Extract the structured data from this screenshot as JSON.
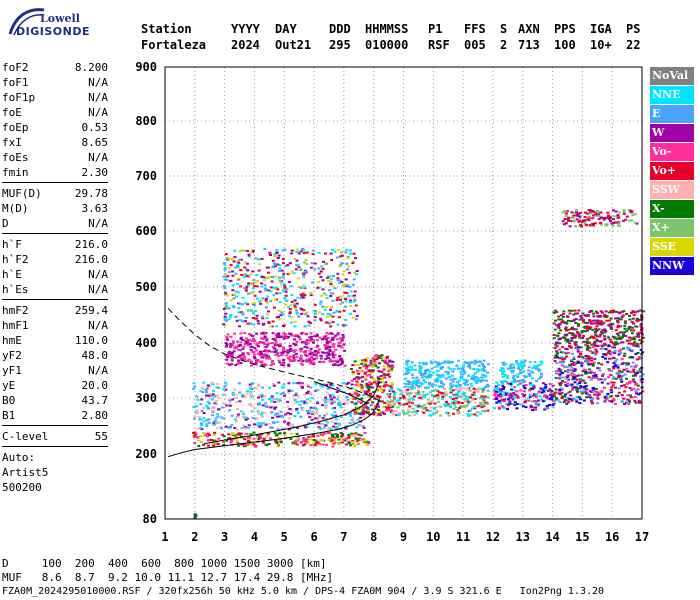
{
  "logo": {
    "line1": "Lowell",
    "line2": "DIGISONDE"
  },
  "header": {
    "labels": [
      "Station",
      "YYYY",
      "DAY",
      "DDD",
      "HHMMSS",
      "P1",
      "FFS",
      "S",
      "AXN",
      "PPS",
      "IGA",
      "PS"
    ],
    "values": [
      "Fortaleza",
      "2024",
      "Out21",
      "295",
      "010000",
      "RSF",
      "005",
      "2",
      "713",
      "100",
      "10+",
      "22"
    ]
  },
  "params": {
    "group1": [
      {
        "label": "foF2",
        "value": "8.200"
      },
      {
        "label": "foF1",
        "value": "N/A"
      },
      {
        "label": "foF1p",
        "value": "N/A"
      },
      {
        "label": "foE",
        "value": "N/A"
      },
      {
        "label": "foEp",
        "value": "0.53"
      },
      {
        "label": "fxI",
        "value": "8.65"
      },
      {
        "label": "foEs",
        "value": "N/A"
      },
      {
        "label": "fmin",
        "value": "2.30"
      }
    ],
    "group2": [
      {
        "label": "MUF(D)",
        "value": "29.78"
      },
      {
        "label": "M(D)",
        "value": "3.63"
      },
      {
        "label": "D",
        "value": "N/A"
      }
    ],
    "group3": [
      {
        "label": "h`F",
        "value": "216.0"
      },
      {
        "label": "h`F2",
        "value": "216.0"
      },
      {
        "label": "h`E",
        "value": "N/A"
      },
      {
        "label": "h`Es",
        "value": "N/A"
      }
    ],
    "group4": [
      {
        "label": "hmF2",
        "value": "259.4"
      },
      {
        "label": "hmF1",
        "value": "N/A"
      },
      {
        "label": "hmE",
        "value": "110.0"
      },
      {
        "label": "yF2",
        "value": "48.0"
      },
      {
        "label": "yF1",
        "value": "N/A"
      },
      {
        "label": "yE",
        "value": "20.0"
      },
      {
        "label": "B0",
        "value": "43.7"
      },
      {
        "label": "B1",
        "value": "2.80"
      }
    ],
    "group5": [
      {
        "label": "C-level",
        "value": "55"
      }
    ],
    "auto": [
      "Auto:",
      "Artist5",
      "500200"
    ]
  },
  "legend": [
    {
      "label": "NoVal",
      "color": "#808080"
    },
    {
      "label": "NNE",
      "color": "#00e5ff"
    },
    {
      "label": "E",
      "color": "#4aa3ff"
    },
    {
      "label": "W",
      "color": "#a000a8"
    },
    {
      "label": "Vo-",
      "color": "#ff2e9a"
    },
    {
      "label": "Vo+",
      "color": "#e8002a"
    },
    {
      "label": "SSW",
      "color": "#ffb0b0"
    },
    {
      "label": "X-",
      "color": "#007a00"
    },
    {
      "label": "X+",
      "color": "#7cc46a"
    },
    {
      "label": "SSE",
      "color": "#d8d800"
    },
    {
      "label": "NNW",
      "color": "#1a00d8"
    }
  ],
  "dmuf": {
    "d_line": "D     100  200  400  600  800 1000 1500 3000 [km]",
    "muf_line": "MUF   8.6  8.7  9.2 10.0 11.1 12.7 17.4 29.8 [MHz]"
  },
  "footer": "FZA0M_2024295010000.RSF / 320fx256h 50 kHz 5.0 km / DPS-4 FZA0M 904 / 3.9 S 321.6 E   Ion2Png 1.3.20",
  "chart_data": {
    "type": "scatter",
    "title": "",
    "xlabel": "",
    "ylabel": "",
    "xlim": [
      1,
      17
    ],
    "ylim": [
      80,
      900
    ],
    "x_ticks": [
      1,
      2,
      3,
      4,
      5,
      6,
      7,
      8,
      9,
      10,
      11,
      12,
      13,
      14,
      15,
      16,
      17
    ],
    "y_ticks": [
      80,
      200,
      300,
      400,
      500,
      600,
      700,
      800,
      900
    ],
    "grid": "dotted",
    "legend_placement": "right",
    "traces": {
      "virtual_height_profile": {
        "style": "solid",
        "color": "#000000",
        "x": [
          1.1,
          1.6,
          2.0,
          2.6,
          3.2,
          3.8,
          4.4,
          5.0,
          5.6,
          6.2,
          6.8,
          7.3,
          7.7,
          7.95,
          8.1,
          8.2
        ],
        "y": [
          195,
          203,
          208,
          212,
          216,
          220,
          224,
          228,
          233,
          238,
          244,
          252,
          262,
          272,
          285,
          300
        ]
      },
      "o_trace_fit": {
        "style": "solid",
        "color": "#000000",
        "x": [
          2.3,
          3.0,
          3.8,
          4.6,
          5.4,
          6.2,
          7.0,
          7.6,
          8.0,
          8.2
        ],
        "y": [
          218,
          225,
          232,
          240,
          248,
          258,
          270,
          285,
          305,
          330
        ]
      },
      "muf_curve": {
        "style": "dashed",
        "color": "#000000",
        "x": [
          1.1,
          1.5,
          2.0,
          2.5,
          3.0,
          3.6,
          4.2,
          4.8,
          5.4,
          6.0,
          6.6,
          7.2,
          7.7,
          8.1,
          8.3
        ],
        "y": [
          462,
          440,
          415,
          395,
          380,
          368,
          358,
          350,
          342,
          335,
          327,
          318,
          308,
          298,
          290
        ]
      },
      "x_trace_fit": {
        "style": "solid",
        "color": "#000000",
        "x": [
          6.0,
          6.6,
          7.1,
          7.5,
          7.8
        ],
        "y": [
          330,
          318,
          308,
          298,
          290
        ]
      }
    },
    "echo_clusters": [
      {
        "x": [
          1.9,
          7.8
        ],
        "y": [
          215,
          240
        ],
        "colors": [
          "#e8002a",
          "#ff2e9a",
          "#007a00",
          "#d8d800"
        ]
      },
      {
        "x": [
          1.9,
          7.8
        ],
        "y": [
          245,
          330
        ],
        "colors": [
          "#00e5ff",
          "#4aa3ff",
          "#a000a8",
          "#ffb0b0"
        ]
      },
      {
        "x": [
          7.2,
          8.6
        ],
        "y": [
          270,
          380
        ],
        "colors": [
          "#e8002a",
          "#ff2e9a",
          "#a000a8",
          "#007a00",
          "#d8d800"
        ]
      },
      {
        "x": [
          8.4,
          11.8
        ],
        "y": [
          270,
          320
        ],
        "colors": [
          "#00e5ff",
          "#ffb0b0",
          "#e8002a",
          "#7cc46a"
        ]
      },
      {
        "x": [
          9.0,
          11.8
        ],
        "y": [
          320,
          370
        ],
        "colors": [
          "#00e5ff",
          "#4aa3ff"
        ]
      },
      {
        "x": [
          12.0,
          14.0
        ],
        "y": [
          280,
          330
        ],
        "colors": [
          "#1a00d8",
          "#ff2e9a",
          "#00e5ff",
          "#a000a8"
        ]
      },
      {
        "x": [
          12.2,
          13.6
        ],
        "y": [
          330,
          370
        ],
        "colors": [
          "#00e5ff",
          "#4aa3ff"
        ]
      },
      {
        "x": [
          14.0,
          17.0
        ],
        "y": [
          290,
          400
        ],
        "colors": [
          "#a000a8",
          "#4aa3ff",
          "#e8002a",
          "#007a00",
          "#ff2e9a",
          "#1a00d8"
        ]
      },
      {
        "x": [
          14.0,
          17.0
        ],
        "y": [
          400,
          460
        ],
        "colors": [
          "#a000a8",
          "#e8002a",
          "#007a00"
        ]
      },
      {
        "x": [
          2.9,
          7.4
        ],
        "y": [
          430,
          570
        ],
        "colors": [
          "#4aa3ff",
          "#d8d800",
          "#e8002a",
          "#00e5ff",
          "#a000a8"
        ]
      },
      {
        "x": [
          14.3,
          16.8
        ],
        "y": [
          610,
          640
        ],
        "colors": [
          "#a000a8",
          "#7cc46a",
          "#e8002a"
        ]
      },
      {
        "x": [
          3.0,
          7.0
        ],
        "y": [
          360,
          420
        ],
        "colors": [
          "#a000a8",
          "#ff2e9a"
        ]
      },
      {
        "x": [
          1.95,
          2.0
        ],
        "y": [
          80,
          95
        ],
        "colors": [
          "#007a00",
          "#1a00d8"
        ]
      }
    ]
  }
}
